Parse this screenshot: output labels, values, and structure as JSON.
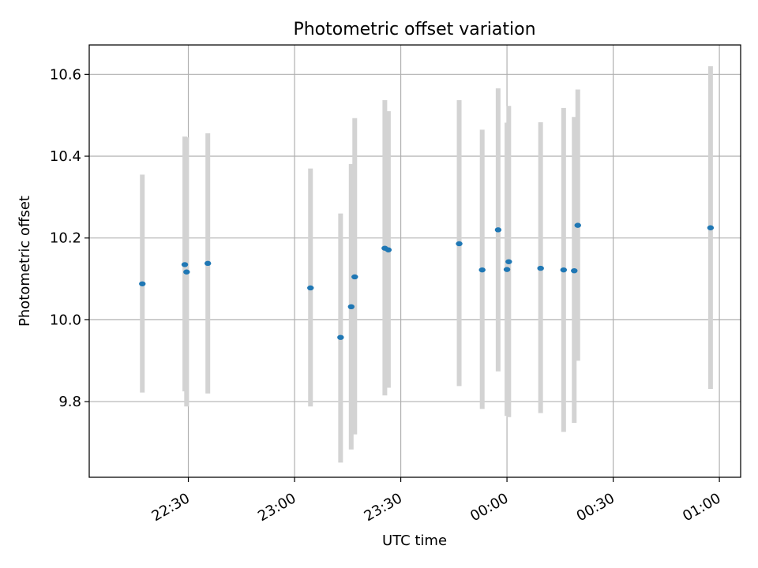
{
  "chart_data": {
    "type": "scatter",
    "title": "Photometric offset variation",
    "xlabel": "UTC time",
    "ylabel": "Photometric offset",
    "xlim": [
      "22:02",
      "01:06"
    ],
    "ylim": [
      9.615,
      10.672
    ],
    "xticks": [
      "22:30",
      "23:00",
      "23:30",
      "00:00",
      "00:30",
      "01:00"
    ],
    "yticks": [
      9.8,
      10.0,
      10.2,
      10.4,
      10.6
    ],
    "grid": true,
    "errorbar_color": "#d3d3d3",
    "point_color": "#1f77b4",
    "points": [
      {
        "x": "22:17",
        "y": 10.088,
        "lo": 9.822,
        "hi": 10.355
      },
      {
        "x": "22:29",
        "y": 10.135,
        "lo": 9.825,
        "hi": 10.448
      },
      {
        "x": "22:29.5",
        "y": 10.117,
        "lo": 9.788,
        "hi": 10.446
      },
      {
        "x": "22:35.5",
        "y": 10.138,
        "lo": 9.82,
        "hi": 10.456
      },
      {
        "x": "23:04.5",
        "y": 10.078,
        "lo": 9.788,
        "hi": 10.37
      },
      {
        "x": "23:13",
        "y": 9.957,
        "lo": 9.651,
        "hi": 10.26
      },
      {
        "x": "23:16",
        "y": 10.032,
        "lo": 9.683,
        "hi": 10.381
      },
      {
        "x": "23:17",
        "y": 10.105,
        "lo": 9.72,
        "hi": 10.493
      },
      {
        "x": "23:25.5",
        "y": 10.175,
        "lo": 9.815,
        "hi": 10.537
      },
      {
        "x": "23:26.5",
        "y": 10.171,
        "lo": 9.834,
        "hi": 10.51
      },
      {
        "x": "23:46.5",
        "y": 10.186,
        "lo": 9.838,
        "hi": 10.537
      },
      {
        "x": "23:53",
        "y": 10.122,
        "lo": 9.782,
        "hi": 10.465
      },
      {
        "x": "23:57.5",
        "y": 10.22,
        "lo": 9.874,
        "hi": 10.566
      },
      {
        "x": "00:00",
        "y": 10.123,
        "lo": 9.765,
        "hi": 10.482
      },
      {
        "x": "00:00.5",
        "y": 10.142,
        "lo": 9.762,
        "hi": 10.523
      },
      {
        "x": "00:09.5",
        "y": 10.126,
        "lo": 9.772,
        "hi": 10.483
      },
      {
        "x": "00:16",
        "y": 10.122,
        "lo": 9.726,
        "hi": 10.518
      },
      {
        "x": "00:19",
        "y": 10.12,
        "lo": 9.748,
        "hi": 10.496
      },
      {
        "x": "00:20",
        "y": 10.231,
        "lo": 9.9,
        "hi": 10.563
      },
      {
        "x": "00:57.5",
        "y": 10.225,
        "lo": 9.831,
        "hi": 10.62
      }
    ]
  }
}
